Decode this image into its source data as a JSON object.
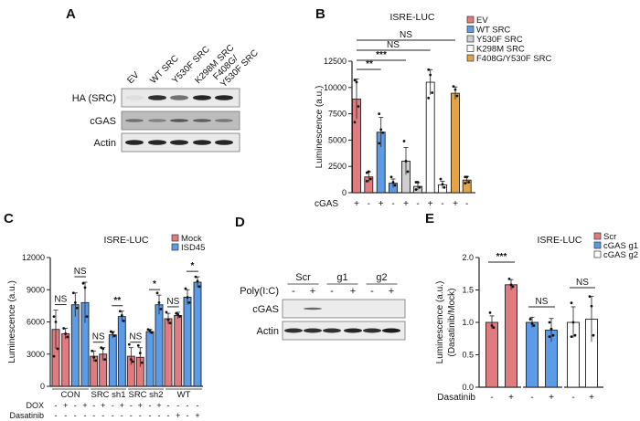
{
  "panels": {
    "a": "A",
    "b": "B",
    "c": "C",
    "d": "D",
    "e": "E"
  },
  "blot_a": {
    "lanes": [
      [
        "EV"
      ],
      [
        "WT SRC"
      ],
      [
        "Y530F SRC"
      ],
      [
        "K298M SRC"
      ],
      [
        "F408G/",
        "Y530F SRC"
      ]
    ],
    "rows": [
      "HA (SRC)",
      "cGAS",
      "Actin"
    ]
  },
  "blot_d": {
    "groups": [
      "Scr",
      "g1",
      "g2"
    ],
    "treatment_label": "Poly(I:C)",
    "treatment": [
      "-",
      "+",
      "-",
      "+",
      "-",
      "+"
    ],
    "rows": [
      "cGAS",
      "Actin"
    ]
  },
  "chart_data": [
    {
      "id": "B",
      "type": "bar",
      "title": "ISRE-LUC",
      "ylabel": "Luminescence (a.u.)",
      "ylim": [
        0,
        12500
      ],
      "yticks": [
        "0",
        "2500",
        "5000",
        "7500",
        "10000",
        "12500"
      ],
      "legend_position": "top-right",
      "series": [
        {
          "name": "EV",
          "color": "#e07b80"
        },
        {
          "name": "WT SRC",
          "color": "#5b9be8"
        },
        {
          "name": "Y530F SRC",
          "color": "#cfcfcf"
        },
        {
          "name": "K298M SRC",
          "color": "#ffffff"
        },
        {
          "name": "F408G/Y530F SRC",
          "color": "#e3a447"
        }
      ],
      "row_label": "cGAS",
      "bars": [
        {
          "series": 0,
          "cgas": "+",
          "value": 8900,
          "error": 1900,
          "points": [
            10700,
            10500,
            8200,
            6700
          ]
        },
        {
          "series": 0,
          "cgas": "-",
          "value": 1500,
          "error": 500,
          "points": [
            1900,
            2000,
            1300,
            1100
          ]
        },
        {
          "series": 1,
          "cgas": "+",
          "value": 5750,
          "error": 1400,
          "points": [
            7500,
            6000,
            5700,
            4700
          ]
        },
        {
          "series": 1,
          "cgas": "-",
          "value": 900,
          "error": 400,
          "points": [
            1500,
            1000,
            700
          ]
        },
        {
          "series": 2,
          "cgas": "+",
          "value": 3000,
          "error": 1300,
          "points": [
            4900,
            3000,
            2000
          ]
        },
        {
          "series": 2,
          "cgas": "-",
          "value": 600,
          "error": 350,
          "points": [
            1000,
            1000,
            500,
            300
          ]
        },
        {
          "series": 3,
          "cgas": "+",
          "value": 10500,
          "error": 1200,
          "points": [
            11700,
            11200,
            9500,
            9000
          ]
        },
        {
          "series": 3,
          "cgas": "-",
          "value": 750,
          "error": 350,
          "points": [
            1300,
            800,
            500
          ]
        },
        {
          "series": 4,
          "cgas": "+",
          "value": 9450,
          "error": 600,
          "points": [
            10100,
            9800,
            9200
          ]
        },
        {
          "series": 4,
          "cgas": "-",
          "value": 1200,
          "error": 350,
          "points": [
            1500,
            1500,
            1000,
            900
          ]
        }
      ],
      "significance": [
        {
          "label": "**",
          "from": 0,
          "to": 2
        },
        {
          "label": "***",
          "from": 0,
          "to": 4
        },
        {
          "label": "NS",
          "from": 0,
          "to": 6
        },
        {
          "label": "NS",
          "from": 0,
          "to": 8
        }
      ]
    },
    {
      "id": "C",
      "type": "bar",
      "title": "ISRE-LUC",
      "ylabel": "Luminescence (a.u.)",
      "ylim": [
        0,
        12000
      ],
      "yticks": [
        "0",
        "3000",
        "6000",
        "9000",
        "12000"
      ],
      "legend_position": "top-right",
      "series": [
        {
          "name": "Mock",
          "color": "#e07b80"
        },
        {
          "name": "ISD45",
          "color": "#5b9be8"
        }
      ],
      "groups": [
        "CON",
        "SRC sh1",
        "SRC sh2",
        "WT"
      ],
      "row_labels": [
        "DOX",
        "Dasatinib"
      ],
      "bars": [
        {
          "series": 0,
          "dox": "-",
          "dasatinib": "-",
          "value": 5300,
          "error": 1800,
          "points": [
            6500,
            6000,
            3500,
            2800
          ]
        },
        {
          "series": 0,
          "dox": "+",
          "dasatinib": "-",
          "value": 4900,
          "error": 500,
          "points": [
            5400,
            4900,
            4600
          ]
        },
        {
          "series": 1,
          "dox": "-",
          "dasatinib": "-",
          "value": 7600,
          "error": 1100,
          "points": [
            8700,
            7800,
            7300
          ]
        },
        {
          "series": 1,
          "dox": "+",
          "dasatinib": "-",
          "value": 7800,
          "error": 1900,
          "points": [
            9600,
            9200,
            6500
          ]
        },
        {
          "series": 0,
          "dox": "-",
          "dasatinib": "-",
          "value": 2800,
          "error": 500,
          "points": [
            3300,
            2700,
            2400
          ]
        },
        {
          "series": 0,
          "dox": "+",
          "dasatinib": "-",
          "value": 3000,
          "error": 600,
          "points": [
            3600,
            3500,
            2500
          ]
        },
        {
          "series": 1,
          "dox": "-",
          "dasatinib": "-",
          "value": 4800,
          "error": 300,
          "points": [
            5100,
            5000,
            4700
          ]
        },
        {
          "series": 1,
          "dox": "+",
          "dasatinib": "-",
          "value": 6500,
          "error": 500,
          "points": [
            7000,
            6600,
            6100
          ]
        },
        {
          "series": 0,
          "dox": "-",
          "dasatinib": "-",
          "value": 2800,
          "error": 800,
          "points": [
            3900,
            2500,
            2300
          ]
        },
        {
          "series": 0,
          "dox": "+",
          "dasatinib": "-",
          "value": 2700,
          "error": 900,
          "points": [
            3800,
            3100,
            2200
          ]
        },
        {
          "series": 1,
          "dox": "-",
          "dasatinib": "-",
          "value": 5100,
          "error": 200,
          "points": [
            5300,
            5200,
            5000
          ]
        },
        {
          "series": 1,
          "dox": "+",
          "dasatinib": "-",
          "value": 7600,
          "error": 900,
          "points": [
            8700,
            7800,
            7200
          ]
        },
        {
          "series": 0,
          "dox": "-",
          "dasatinib": "-",
          "value": 6300,
          "error": 500,
          "points": [
            6900,
            6200,
            5900
          ]
        },
        {
          "series": 0,
          "dox": "-",
          "dasatinib": "+",
          "value": 6600,
          "error": 300,
          "points": [
            6800,
            6700,
            6500
          ]
        },
        {
          "series": 1,
          "dox": "-",
          "dasatinib": "-",
          "value": 8300,
          "error": 700,
          "points": [
            9100,
            8300,
            7800
          ]
        },
        {
          "series": 1,
          "dox": "-",
          "dasatinib": "+",
          "value": 9700,
          "error": 500,
          "points": [
            10200,
            9800,
            9300
          ]
        }
      ],
      "significance": [
        {
          "label": "NS",
          "from": 0,
          "to": 1
        },
        {
          "label": "NS",
          "from": 2,
          "to": 3
        },
        {
          "label": "NS",
          "from": 4,
          "to": 5
        },
        {
          "label": "**",
          "from": 6,
          "to": 7
        },
        {
          "label": "NS",
          "from": 8,
          "to": 9
        },
        {
          "label": "*",
          "from": 10,
          "to": 11
        },
        {
          "label": "NS",
          "from": 12,
          "to": 13
        },
        {
          "label": "*",
          "from": 14,
          "to": 15
        }
      ]
    },
    {
      "id": "E",
      "type": "bar",
      "title": "ISRE-LUC",
      "ylabel": [
        "Luminescence (a.u.)",
        "(Dasatinib/Mock)"
      ],
      "ylim": [
        0,
        2.0
      ],
      "yticks": [
        "0.0",
        "0.5",
        "1.0",
        "1.5",
        "2.0"
      ],
      "legend_position": "top-right",
      "series": [
        {
          "name": "Scr",
          "color": "#e07b80"
        },
        {
          "name": "cGAS g1",
          "color": "#5b9be8"
        },
        {
          "name": "cGAS g2",
          "color": "#ffffff"
        }
      ],
      "row_label": "Dasatinib",
      "bars": [
        {
          "series": 0,
          "dasatinib": "-",
          "value": 1.0,
          "error": 0.1,
          "points": [
            1.15,
            0.95,
            0.92
          ]
        },
        {
          "series": 0,
          "dasatinib": "+",
          "value": 1.58,
          "error": 0.08,
          "points": [
            1.67,
            1.58,
            1.55
          ]
        },
        {
          "series": 1,
          "dasatinib": "-",
          "value": 1.0,
          "error": 0.08,
          "points": [
            1.05,
            0.98,
            0.95
          ]
        },
        {
          "series": 1,
          "dasatinib": "+",
          "value": 0.88,
          "error": 0.18,
          "points": [
            1.0,
            0.9,
            0.8,
            0.78
          ]
        },
        {
          "series": 2,
          "dasatinib": "-",
          "value": 1.0,
          "error": 0.24,
          "points": [
            1.3,
            1.0,
            0.8,
            0.78
          ]
        },
        {
          "series": 2,
          "dasatinib": "+",
          "value": 1.05,
          "error": 0.35,
          "points": [
            1.4,
            1.25,
            0.8
          ]
        }
      ],
      "significance": [
        {
          "label": "***",
          "from": 0,
          "to": 1
        },
        {
          "label": "NS",
          "from": 2,
          "to": 3
        },
        {
          "label": "NS",
          "from": 4,
          "to": 5
        }
      ]
    }
  ]
}
